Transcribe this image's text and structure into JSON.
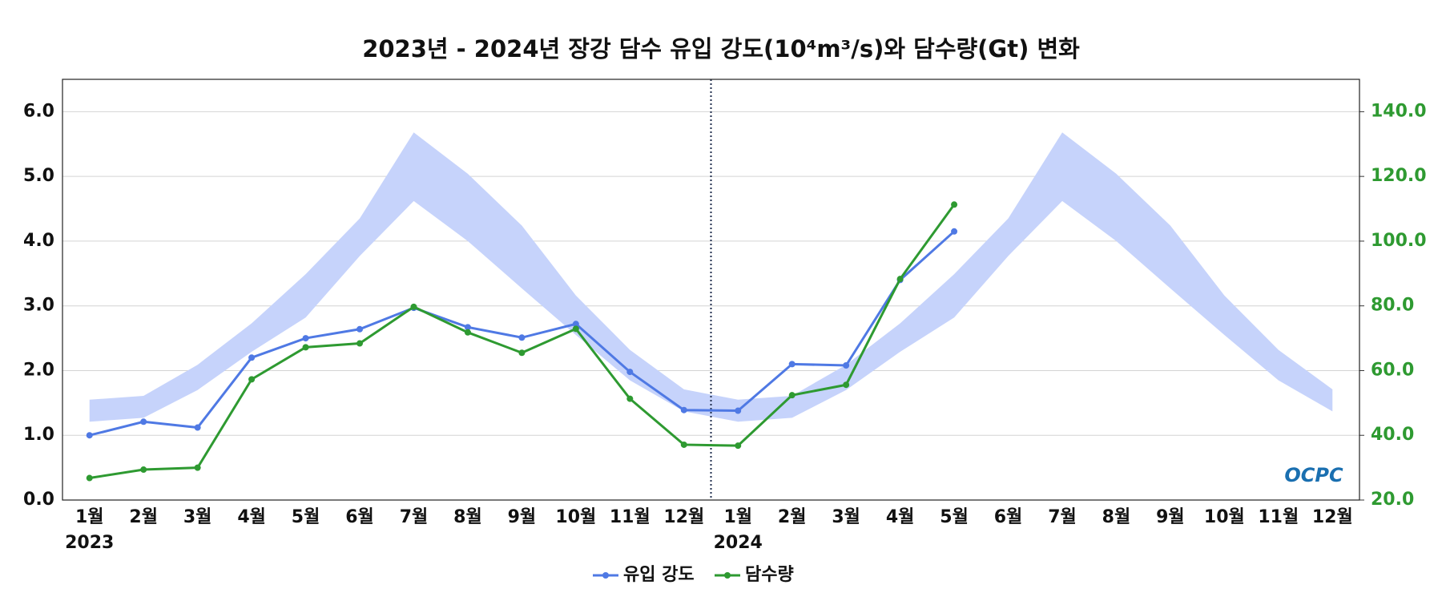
{
  "chart_data": {
    "type": "line",
    "title": "2023년 - 2024년 장강 담수 유입 강도(10⁴m³/s)와 담수량(Gt) 변화",
    "categories": [
      "1월",
      "2월",
      "3월",
      "4월",
      "5월",
      "6월",
      "7월",
      "8월",
      "9월",
      "10월",
      "11월",
      "12월",
      "1월",
      "2월",
      "3월",
      "4월",
      "5월",
      "6월",
      "7월",
      "8월",
      "9월",
      "10월",
      "11월",
      "12월"
    ],
    "years": [
      "2023",
      "2024"
    ],
    "band": {
      "color": "#c6d3fb",
      "upper": [
        1.55,
        1.61,
        2.09,
        2.73,
        3.49,
        4.35,
        5.68,
        5.04,
        4.24,
        3.16,
        2.32,
        1.71,
        1.55,
        1.61,
        2.09,
        2.73,
        3.49,
        4.35,
        5.68,
        5.04,
        4.24,
        3.16,
        2.32,
        1.71
      ],
      "lower": [
        1.21,
        1.27,
        1.7,
        2.29,
        2.82,
        3.77,
        4.62,
        4.0,
        3.27,
        2.55,
        1.85,
        1.37,
        1.21,
        1.27,
        1.7,
        2.29,
        2.82,
        3.77,
        4.62,
        4.0,
        3.27,
        2.55,
        1.85,
        1.37
      ]
    },
    "series": [
      {
        "name": "유입 강도",
        "color": "#4f79e4",
        "axis": "y",
        "values": [
          1.0,
          1.21,
          1.12,
          2.2,
          2.5,
          2.64,
          2.97,
          2.67,
          2.51,
          2.72,
          1.98,
          1.39,
          1.38,
          2.1,
          2.08,
          3.4,
          4.15,
          null,
          null,
          null,
          null,
          null,
          null,
          null
        ]
      },
      {
        "name": "담수량",
        "color": "#2e9a31",
        "axis": "y2",
        "values": [
          26.8,
          29.4,
          30.0,
          57.3,
          67.2,
          68.4,
          79.7,
          71.8,
          65.5,
          72.9,
          51.3,
          37.1,
          36.8,
          52.4,
          55.6,
          88.3,
          111.3,
          null,
          null,
          null,
          null,
          null,
          null,
          null
        ]
      }
    ],
    "ylim": [
      0,
      6.5
    ],
    "yticks": [
      {
        "value": 0,
        "label": "0.0"
      },
      {
        "value": 1,
        "label": "1.0"
      },
      {
        "value": 2,
        "label": "2.0"
      },
      {
        "value": 3,
        "label": "3.0"
      },
      {
        "value": 4,
        "label": "4.0"
      },
      {
        "value": 5,
        "label": "5.0"
      },
      {
        "value": 6,
        "label": "6.0"
      }
    ],
    "y2lim": [
      20,
      150
    ],
    "y2ticks": [
      {
        "value": 20,
        "label": "20.0"
      },
      {
        "value": 40,
        "label": "40.0"
      },
      {
        "value": 60,
        "label": "60.0"
      },
      {
        "value": 80,
        "label": "80.0"
      },
      {
        "value": 100,
        "label": "100.0"
      },
      {
        "value": 120,
        "label": "120.0"
      },
      {
        "value": 140,
        "label": "140.0"
      }
    ],
    "y2color": "#2e9a31",
    "grid": true,
    "legend": "bottom",
    "logo": "OCPC"
  }
}
